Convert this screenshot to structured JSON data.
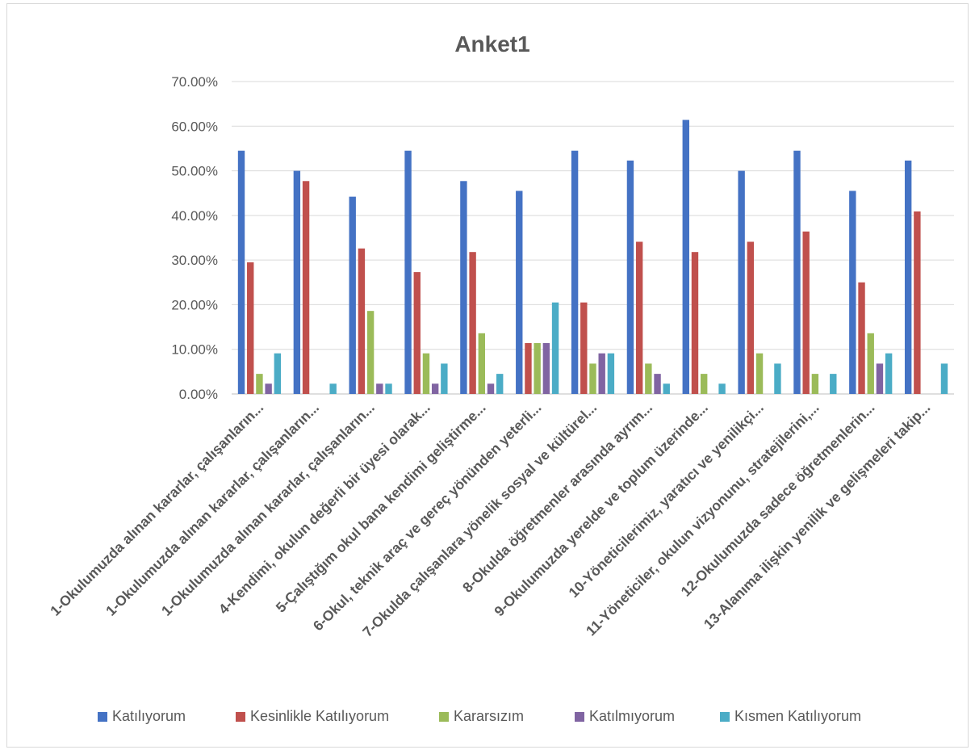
{
  "chart_data": {
    "type": "bar",
    "title": "Anket1",
    "xlabel": "",
    "ylabel": "",
    "ylim": [
      0,
      0.7
    ],
    "yticks": [
      "0.00%",
      "10.00%",
      "20.00%",
      "30.00%",
      "40.00%",
      "50.00%",
      "60.00%",
      "70.00%"
    ],
    "grid": true,
    "legend_position": "bottom",
    "categories": [
      "1-Okulumuzda alınan kararlar, çalışanların...",
      "1-Okulumuzda alınan kararlar, çalışanların...",
      "1-Okulumuzda alınan kararlar, çalışanların...",
      "4-Kendimi, okulun değerli bir üyesi olarak...",
      "5-Çalıştığım okul bana kendimi geliştirme...",
      "6-Okul, teknik araç ve gereç yönünden yeterli...",
      "7-Okulda çalışanlara yönelik sosyal ve kültürel...",
      "8-Okulda öğretmenler arasında ayrım...",
      "9-Okulumuzda yerelde ve toplum üzerinde...",
      "10-Yöneticilerimiz, yaratıcı ve yenilikçi...",
      "11-Yöneticiler, okulun vizyonunu, stratejilerini,...",
      "12-Okulumuzda sadece öğretmenlerin...",
      "13-Alanıma ilişkin yenilik ve gelişmeleri takip..."
    ],
    "series": [
      {
        "name": "Katılıyorum",
        "color": "#4472c4",
        "values": [
          0.545,
          0.5,
          0.442,
          0.545,
          0.477,
          0.455,
          0.545,
          0.523,
          0.614,
          0.5,
          0.545,
          0.455,
          0.523
        ]
      },
      {
        "name": "Kesinlikle Katılıyorum",
        "color": "#c0504d",
        "values": [
          0.295,
          0.477,
          0.326,
          0.273,
          0.318,
          0.114,
          0.205,
          0.341,
          0.318,
          0.341,
          0.364,
          0.25,
          0.409
        ]
      },
      {
        "name": "Kararsızım",
        "color": "#9bbb59",
        "values": [
          0.045,
          0,
          0.186,
          0.091,
          0.136,
          0.114,
          0.068,
          0.068,
          0.045,
          0.091,
          0.045,
          0.136,
          0
        ]
      },
      {
        "name": "Katılmıyorum",
        "color": "#8064a2",
        "values": [
          0.023,
          0,
          0.023,
          0.023,
          0.023,
          0.114,
          0.091,
          0.045,
          0,
          0,
          0,
          0.068,
          0
        ]
      },
      {
        "name": "Kısmen Katılıyorum",
        "color": "#4bacc6",
        "values": [
          0.091,
          0.023,
          0.023,
          0.068,
          0.045,
          0.205,
          0.091,
          0.023,
          0.023,
          0.068,
          0.045,
          0.091,
          0.068
        ]
      }
    ]
  }
}
